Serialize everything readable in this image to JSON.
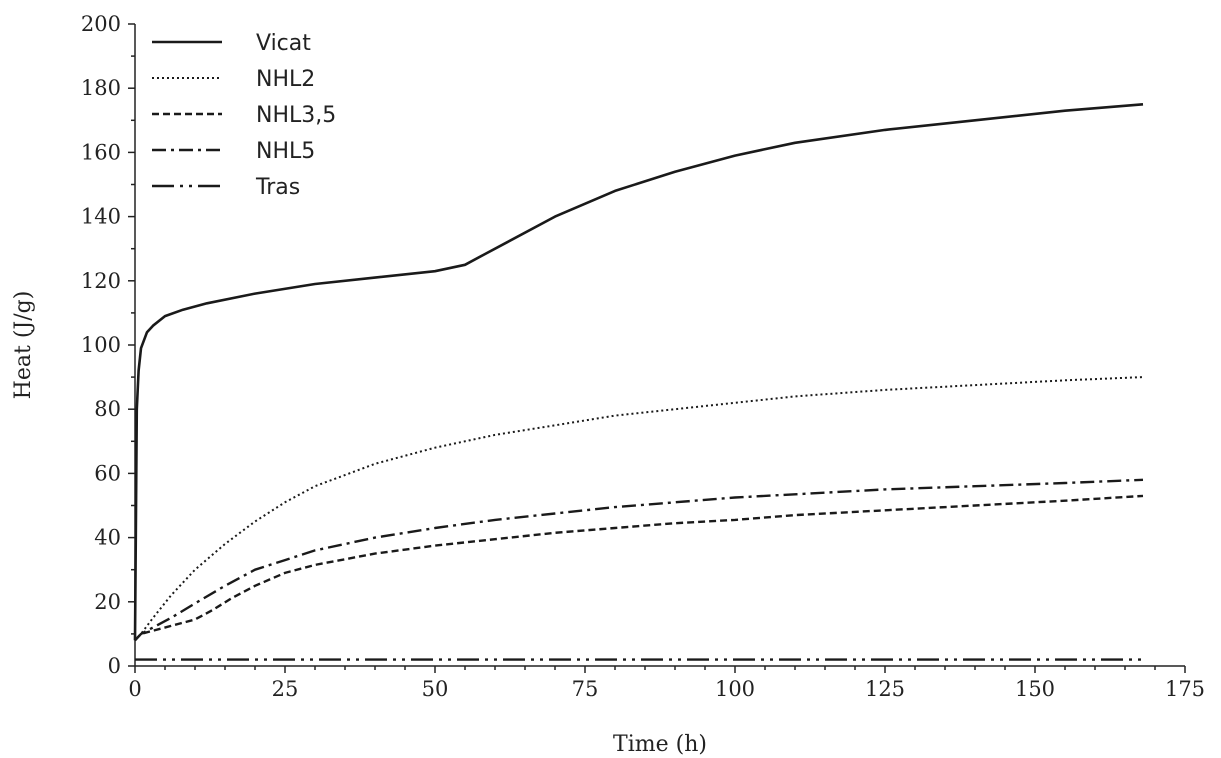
{
  "chart_data": {
    "type": "line",
    "title": "",
    "xlabel": "Time (h)",
    "ylabel": "Heat (J/g)",
    "xlim": [
      0,
      175
    ],
    "ylim": [
      0,
      200
    ],
    "xticks": [
      0,
      25,
      50,
      75,
      100,
      125,
      150,
      175
    ],
    "yticks": [
      0,
      20,
      40,
      60,
      80,
      100,
      120,
      140,
      160,
      180,
      200
    ],
    "grid": false,
    "legend_position": "top-left",
    "series": [
      {
        "name": "Vicat",
        "style": "solid",
        "x": [
          0,
          0.3,
          0.6,
          1,
          2,
          3,
          5,
          8,
          12,
          20,
          30,
          40,
          50,
          55,
          58,
          62,
          70,
          80,
          90,
          100,
          110,
          125,
          140,
          155,
          168
        ],
        "y": [
          8,
          80,
          92,
          99,
          104,
          106,
          109,
          111,
          113,
          116,
          119,
          121,
          123,
          125,
          128,
          132,
          140,
          148,
          154,
          159,
          163,
          167,
          170,
          173,
          175
        ]
      },
      {
        "name": "NHL2",
        "style": "dotted",
        "x": [
          0,
          1,
          3,
          6,
          10,
          15,
          20,
          25,
          30,
          40,
          50,
          60,
          70,
          80,
          90,
          100,
          110,
          125,
          140,
          155,
          168
        ],
        "y": [
          8,
          10,
          15,
          22,
          30,
          38,
          45,
          51,
          56,
          63,
          68,
          72,
          75,
          78,
          80,
          82,
          84,
          86,
          87.5,
          89,
          90
        ]
      },
      {
        "name": "NHL3,5",
        "style": "dashed",
        "x": [
          0,
          1,
          3,
          6,
          10,
          13,
          16,
          20,
          25,
          30,
          40,
          50,
          60,
          70,
          80,
          90,
          100,
          110,
          125,
          140,
          155,
          168
        ],
        "y": [
          8,
          10,
          11,
          12.5,
          14.5,
          17.5,
          21,
          25,
          29,
          31.5,
          35,
          37.5,
          39.5,
          41.5,
          43,
          44.5,
          45.5,
          47,
          48.5,
          50,
          51.5,
          53
        ]
      },
      {
        "name": "NHL5",
        "style": "dashdot",
        "x": [
          0,
          1,
          3,
          6,
          10,
          15,
          20,
          25,
          30,
          40,
          50,
          60,
          70,
          80,
          90,
          100,
          110,
          125,
          140,
          155,
          168
        ],
        "y": [
          8,
          10,
          12,
          15,
          19.5,
          25,
          30,
          33,
          36,
          40,
          43,
          45.5,
          47.5,
          49.5,
          51,
          52.5,
          53.5,
          55,
          56,
          57,
          58
        ]
      },
      {
        "name": "Tras",
        "style": "dashdotdot",
        "x": [
          0,
          168
        ],
        "y": [
          2,
          2
        ]
      }
    ]
  }
}
